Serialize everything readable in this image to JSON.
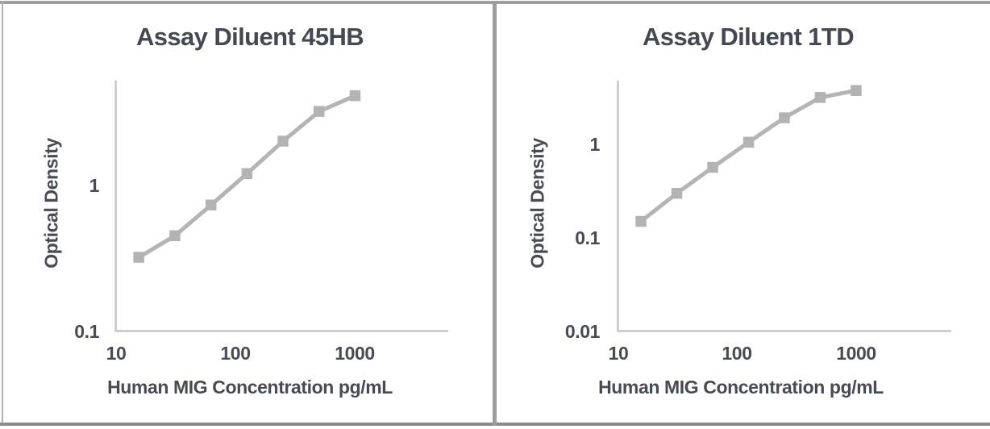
{
  "figure": {
    "description": "Two ELISA standard curve charts side by side"
  },
  "colors": {
    "series": "#b4b4b4",
    "marker": "#b3b3b3",
    "axis": "#c6c6c6",
    "text": "#474b54",
    "border_outer": "#9e9e9e",
    "border_left": "#b2b2b2",
    "border_bottom": "#8b8b8b",
    "divider": "#9d9d9d",
    "background": "#ffffff"
  },
  "chart_data": [
    {
      "type": "line",
      "title": "Assay Diluent 45HB",
      "xlabel": "Human MIG Concentration pg/mL",
      "ylabel": "Optical Density",
      "x_scale": "log",
      "y_scale": "log",
      "xlim": [
        10,
        6000
      ],
      "ylim": [
        0.1,
        5.2
      ],
      "x_ticks": [
        10,
        100,
        1000
      ],
      "x_tick_labels": [
        "10",
        "100",
        "1000"
      ],
      "y_ticks": [
        1,
        0.1
      ],
      "y_tick_labels": [
        "1",
        "0.1"
      ],
      "grid": false,
      "legend": false,
      "marker": "square",
      "x": [
        15.6,
        31.25,
        62.5,
        125,
        250,
        500,
        1000
      ],
      "y": [
        0.32,
        0.45,
        0.73,
        1.2,
        2.0,
        3.2,
        4.1
      ]
    },
    {
      "type": "line",
      "title": "Assay Diluent 1TD",
      "xlabel": "Human MIG Concentration pg/mL",
      "ylabel": "Optical Density",
      "x_scale": "log",
      "y_scale": "log",
      "xlim": [
        10,
        6300
      ],
      "ylim": [
        0.01,
        4.85
      ],
      "x_ticks": [
        10,
        100,
        1000
      ],
      "x_tick_labels": [
        "10",
        "100",
        "1000"
      ],
      "y_ticks": [
        1,
        0.1,
        0.01
      ],
      "y_tick_labels": [
        "1",
        "0.1",
        "0.01"
      ],
      "grid": false,
      "legend": false,
      "marker": "square",
      "x": [
        15.6,
        31.25,
        62.5,
        125,
        250,
        500,
        1000
      ],
      "y": [
        0.15,
        0.3,
        0.57,
        1.06,
        1.94,
        3.2,
        3.8
      ]
    }
  ]
}
